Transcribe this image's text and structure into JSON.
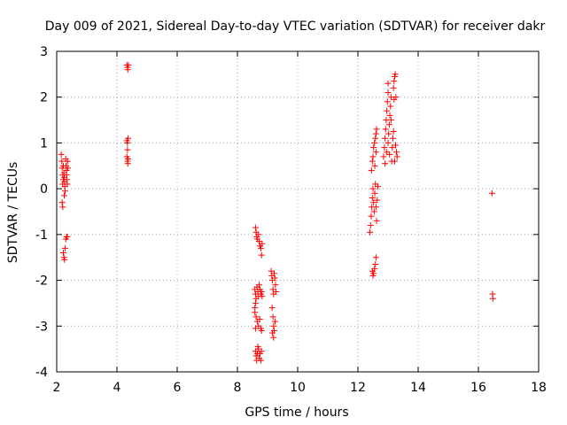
{
  "chart_data": {
    "type": "scatter",
    "title": "Day 009 of 2021, Sidereal Day-to-day VTEC variation (SDTVAR) for receiver dakr",
    "xlabel": "GPS time / hours",
    "ylabel": "SDTVAR / TECUs",
    "xlim": [
      2,
      18
    ],
    "ylim": [
      -4,
      3
    ],
    "grid": true,
    "xticks": [
      2,
      4,
      6,
      8,
      10,
      12,
      14,
      16,
      18
    ],
    "yticks": [
      -4,
      -3,
      -2,
      -1,
      0,
      1,
      2,
      3
    ],
    "marker": "plus",
    "color": "#ff0000",
    "series": [
      {
        "name": "SDTVAR",
        "points": [
          [
            2.15,
            0.75
          ],
          [
            2.17,
            0.6
          ],
          [
            2.18,
            0.45
          ],
          [
            2.2,
            0.3
          ],
          [
            2.22,
            0.2
          ],
          [
            2.2,
            0.1
          ],
          [
            2.18,
            -0.3
          ],
          [
            2.2,
            -0.4
          ],
          [
            2.22,
            0.5
          ],
          [
            2.24,
            0.35
          ],
          [
            2.25,
            0.25
          ],
          [
            2.26,
            0.15
          ],
          [
            2.27,
            0.05
          ],
          [
            2.28,
            -0.05
          ],
          [
            2.25,
            -0.15
          ],
          [
            2.3,
            0.65
          ],
          [
            2.31,
            0.5
          ],
          [
            2.32,
            0.4
          ],
          [
            2.33,
            0.3
          ],
          [
            2.34,
            0.2
          ],
          [
            2.35,
            0.1
          ],
          [
            2.36,
            0.6
          ],
          [
            2.37,
            0.45
          ],
          [
            2.22,
            -1.4
          ],
          [
            2.24,
            -1.5
          ],
          [
            2.26,
            -1.55
          ],
          [
            2.28,
            -1.3
          ],
          [
            2.3,
            -1.1
          ],
          [
            2.33,
            -1.05
          ],
          [
            2.35,
            -1.05
          ],
          [
            4.33,
            2.7
          ],
          [
            4.35,
            2.65
          ],
          [
            4.36,
            2.6
          ],
          [
            4.38,
            2.7
          ],
          [
            4.33,
            1.05
          ],
          [
            4.35,
            1.0
          ],
          [
            4.37,
            1.1
          ],
          [
            4.35,
            0.85
          ],
          [
            4.33,
            0.7
          ],
          [
            4.35,
            0.6
          ],
          [
            4.37,
            0.65
          ],
          [
            4.36,
            0.55
          ],
          [
            8.6,
            -0.85
          ],
          [
            8.62,
            -0.95
          ],
          [
            8.64,
            -1.05
          ],
          [
            8.66,
            -1.1
          ],
          [
            8.7,
            -1.0
          ],
          [
            8.72,
            -1.15
          ],
          [
            8.75,
            -1.25
          ],
          [
            8.78,
            -1.3
          ],
          [
            8.8,
            -1.45
          ],
          [
            8.82,
            -1.2
          ],
          [
            8.58,
            -2.2
          ],
          [
            8.6,
            -2.3
          ],
          [
            8.62,
            -2.4
          ],
          [
            8.6,
            -2.5
          ],
          [
            8.58,
            -2.6
          ],
          [
            8.65,
            -2.15
          ],
          [
            8.68,
            -2.25
          ],
          [
            8.7,
            -2.35
          ],
          [
            8.72,
            -2.1
          ],
          [
            8.75,
            -2.2
          ],
          [
            8.78,
            -2.3
          ],
          [
            8.8,
            -2.25
          ],
          [
            8.82,
            -2.35
          ],
          [
            8.58,
            -2.7
          ],
          [
            8.62,
            -2.8
          ],
          [
            8.66,
            -2.9
          ],
          [
            8.7,
            -3.0
          ],
          [
            8.74,
            -2.85
          ],
          [
            8.78,
            -3.05
          ],
          [
            8.8,
            -3.1
          ],
          [
            8.6,
            -3.05
          ],
          [
            8.6,
            -3.55
          ],
          [
            8.62,
            -3.65
          ],
          [
            8.64,
            -3.75
          ],
          [
            8.66,
            -3.6
          ],
          [
            8.7,
            -3.5
          ],
          [
            8.72,
            -3.7
          ],
          [
            8.75,
            -3.6
          ],
          [
            8.78,
            -3.75
          ],
          [
            8.8,
            -3.55
          ],
          [
            8.68,
            -3.45
          ],
          [
            9.12,
            -1.8
          ],
          [
            9.14,
            -1.9
          ],
          [
            9.16,
            -2.0
          ],
          [
            9.18,
            -2.2
          ],
          [
            9.2,
            -2.3
          ],
          [
            9.22,
            -1.85
          ],
          [
            9.24,
            -1.95
          ],
          [
            9.26,
            -2.1
          ],
          [
            9.28,
            -2.25
          ],
          [
            9.15,
            -2.6
          ],
          [
            9.18,
            -2.8
          ],
          [
            9.2,
            -3.0
          ],
          [
            9.22,
            -3.1
          ],
          [
            9.25,
            -2.9
          ],
          [
            9.2,
            -3.25
          ],
          [
            9.16,
            -3.15
          ],
          [
            12.4,
            -0.95
          ],
          [
            12.42,
            -0.8
          ],
          [
            12.44,
            -0.6
          ],
          [
            12.46,
            -0.4
          ],
          [
            12.48,
            -0.2
          ],
          [
            12.5,
            0.0
          ],
          [
            12.52,
            -0.3
          ],
          [
            12.54,
            -0.5
          ],
          [
            12.56,
            -0.1
          ],
          [
            12.58,
            0.1
          ],
          [
            12.6,
            -0.4
          ],
          [
            12.62,
            -0.7
          ],
          [
            12.64,
            -0.25
          ],
          [
            12.66,
            0.05
          ],
          [
            12.48,
            -1.8
          ],
          [
            12.5,
            -1.9
          ],
          [
            12.52,
            -1.85
          ],
          [
            12.55,
            -1.75
          ],
          [
            12.58,
            -1.65
          ],
          [
            12.6,
            -1.5
          ],
          [
            12.45,
            0.4
          ],
          [
            12.48,
            0.6
          ],
          [
            12.5,
            0.7
          ],
          [
            12.52,
            0.9
          ],
          [
            12.55,
            1.0
          ],
          [
            12.58,
            1.1
          ],
          [
            12.6,
            1.2
          ],
          [
            12.62,
            1.3
          ],
          [
            12.56,
            0.5
          ],
          [
            12.6,
            0.8
          ],
          [
            12.85,
            0.7
          ],
          [
            12.88,
            0.9
          ],
          [
            12.9,
            1.1
          ],
          [
            12.92,
            1.3
          ],
          [
            12.94,
            1.5
          ],
          [
            12.96,
            1.7
          ],
          [
            12.98,
            1.9
          ],
          [
            13.0,
            2.1
          ],
          [
            13.0,
            2.3
          ],
          [
            12.9,
            0.55
          ],
          [
            12.95,
            0.8
          ],
          [
            13.0,
            1.0
          ],
          [
            13.02,
            1.2
          ],
          [
            13.04,
            1.4
          ],
          [
            13.06,
            1.6
          ],
          [
            13.08,
            1.8
          ],
          [
            13.1,
            2.0
          ],
          [
            13.1,
            1.5
          ],
          [
            13.12,
            0.6
          ],
          [
            13.14,
            0.9
          ],
          [
            13.16,
            1.1
          ],
          [
            13.18,
            2.2
          ],
          [
            13.2,
            2.35
          ],
          [
            13.22,
            2.45
          ],
          [
            13.24,
            2.5
          ],
          [
            13.26,
            2.0
          ],
          [
            13.2,
            1.95
          ],
          [
            13.25,
            0.95
          ],
          [
            13.28,
            0.8
          ],
          [
            13.3,
            0.7
          ],
          [
            13.22,
            0.6
          ],
          [
            13.18,
            1.25
          ],
          [
            13.05,
            0.75
          ],
          [
            16.45,
            -0.1
          ],
          [
            16.47,
            -2.3
          ],
          [
            16.48,
            -2.4
          ]
        ]
      }
    ]
  }
}
